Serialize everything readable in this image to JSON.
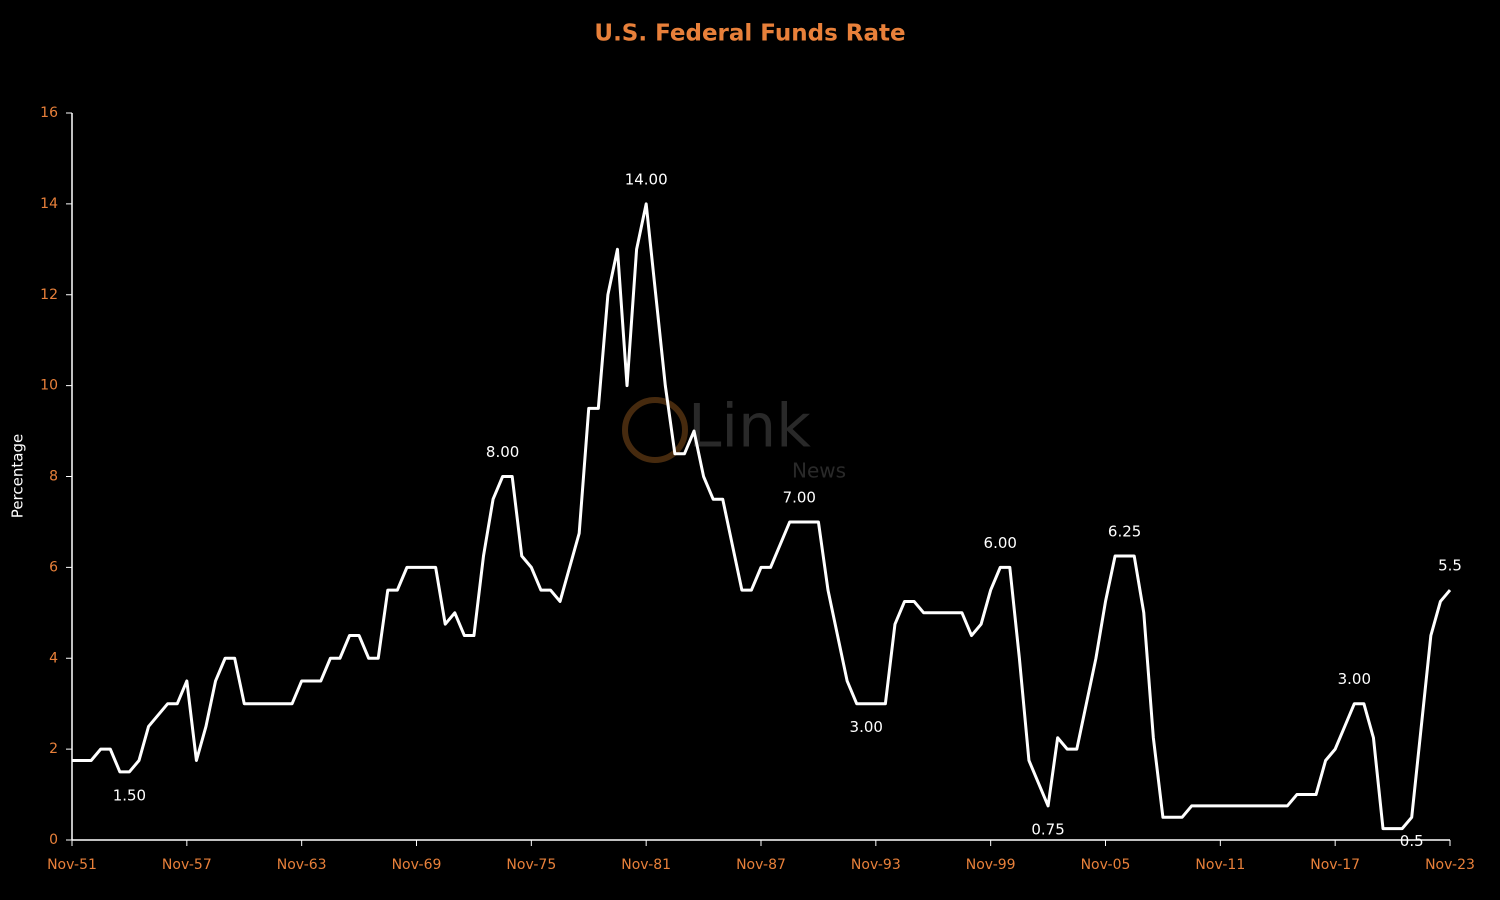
{
  "chart_data": {
    "type": "line",
    "title": "U.S. Federal Funds Rate",
    "y_label": "Percentage",
    "categories": [
      "Nov-51",
      null,
      null,
      null,
      null,
      null,
      null,
      null,
      null,
      null,
      null,
      null,
      "Nov-57",
      null,
      null,
      null,
      null,
      null,
      null,
      null,
      null,
      null,
      null,
      null,
      "Nov-63",
      null,
      null,
      null,
      null,
      null,
      null,
      null,
      null,
      null,
      null,
      null,
      "Nov-69",
      null,
      null,
      null,
      null,
      null,
      null,
      null,
      null,
      null,
      null,
      null,
      "Nov-75",
      null,
      null,
      null,
      null,
      null,
      null,
      null,
      null,
      null,
      null,
      null,
      "Nov-81",
      null,
      null,
      null,
      null,
      null,
      null,
      null,
      null,
      null,
      null,
      null,
      "Nov-87",
      null,
      null,
      null,
      null,
      null,
      null,
      null,
      null,
      null,
      null,
      null,
      "Nov-93",
      null,
      null,
      null,
      null,
      null,
      null,
      null,
      null,
      null,
      null,
      null,
      "Nov-99",
      null,
      null,
      null,
      null,
      null,
      null,
      null,
      null,
      null,
      null,
      null,
      "Nov-05",
      null,
      null,
      null,
      null,
      null,
      null,
      null,
      null,
      null,
      null,
      null,
      "Nov-11",
      null,
      null,
      null,
      null,
      null,
      null,
      null,
      null,
      null,
      null,
      null,
      "Nov-17",
      null,
      null,
      null,
      null,
      null,
      null,
      null,
      null,
      null,
      null,
      null,
      "Nov-23"
    ],
    "values": [
      1.75,
      1.75,
      1.75,
      2,
      2,
      1.5,
      1.5,
      1.75,
      2.5,
      2.75,
      3,
      3,
      3.5,
      1.75,
      2.5,
      3.5,
      4,
      4,
      3,
      3,
      3,
      3,
      3,
      3,
      3.5,
      3.5,
      3.5,
      4,
      4,
      4.5,
      4.5,
      4,
      4,
      5.5,
      5.5,
      6,
      6,
      6,
      6,
      4.75,
      5,
      4.5,
      4.5,
      6.25,
      7.5,
      8,
      8,
      6.25,
      6,
      5.5,
      5.5,
      5.25,
      6,
      6.75,
      9.5,
      9.5,
      12,
      13,
      10,
      13,
      14,
      12,
      10,
      8.5,
      8.5,
      9,
      8,
      7.5,
      7.5,
      6.5,
      5.5,
      5.5,
      6,
      6,
      6.5,
      7,
      7,
      7,
      7,
      5.5,
      4.5,
      3.5,
      3,
      3,
      3,
      3,
      4.75,
      5.25,
      5.25,
      5,
      5,
      5,
      5,
      5,
      4.5,
      4.75,
      5.5,
      6,
      6,
      4,
      1.75,
      1.25,
      0.75,
      2.25,
      2,
      2,
      3,
      4,
      5.25,
      6.25,
      6.25,
      6.25,
      5,
      2.25,
      0.5,
      0.5,
      0.5,
      0.75,
      0.75,
      0.75,
      0.75,
      0.75,
      0.75,
      0.75,
      0.75,
      0.75,
      0.75,
      0.75,
      1,
      1,
      1,
      1.75,
      2,
      2.5,
      3,
      3,
      2.25,
      0.25,
      0.25,
      0.25,
      0.5,
      2.5,
      4.5,
      5.25,
      5.5
    ],
    "value_labels": [
      null,
      null,
      null,
      null,
      null,
      null,
      "1.50",
      null,
      null,
      null,
      null,
      null,
      null,
      null,
      null,
      null,
      null,
      null,
      null,
      null,
      null,
      null,
      null,
      null,
      null,
      null,
      null,
      null,
      null,
      null,
      null,
      null,
      null,
      null,
      null,
      null,
      null,
      null,
      null,
      null,
      null,
      null,
      null,
      null,
      null,
      "8.00",
      null,
      null,
      null,
      null,
      null,
      null,
      null,
      null,
      null,
      null,
      null,
      null,
      null,
      null,
      "14.00",
      null,
      null,
      null,
      null,
      null,
      null,
      null,
      null,
      null,
      null,
      null,
      null,
      null,
      null,
      null,
      "7.00",
      null,
      null,
      null,
      null,
      null,
      null,
      "3.00",
      null,
      null,
      null,
      null,
      null,
      null,
      null,
      null,
      null,
      null,
      null,
      null,
      null,
      "6.00",
      null,
      null,
      null,
      null,
      "0.75",
      null,
      null,
      null,
      null,
      null,
      null,
      null,
      "6.25",
      null,
      null,
      null,
      null,
      null,
      null,
      null,
      null,
      null,
      null,
      null,
      null,
      null,
      null,
      null,
      null,
      null,
      null,
      null,
      null,
      null,
      null,
      null,
      "3.00",
      null,
      null,
      null,
      null,
      null,
      "0.5",
      null,
      null,
      null,
      "5.5"
    ],
    "color": "#ffffff",
    "ylim": [
      0,
      16
    ],
    "yticks": [
      0,
      2,
      4,
      6,
      8,
      10,
      12,
      14,
      16
    ],
    "grid": false
  },
  "watermark": {
    "text": "Link",
    "sub": "News"
  }
}
